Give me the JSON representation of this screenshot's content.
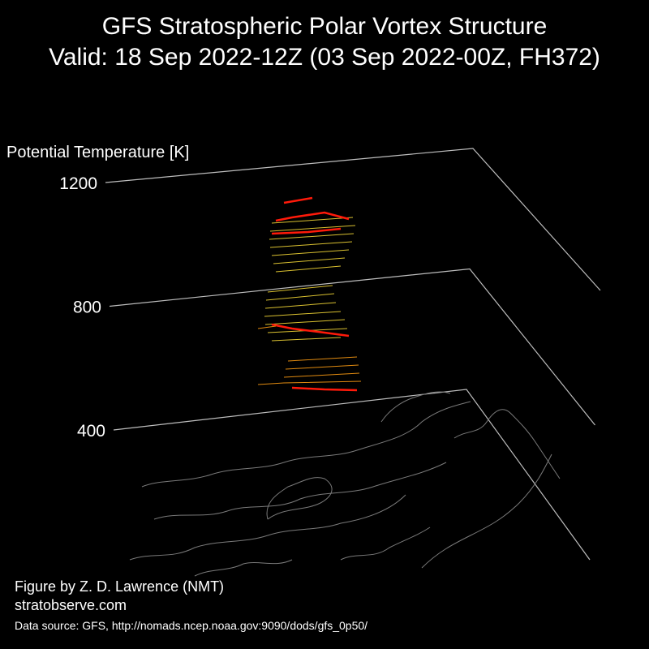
{
  "header": {
    "title": "GFS Stratospheric Polar Vortex Structure",
    "subtitle": "Valid: 18 Sep 2022-12Z  (03 Sep 2022-00Z, FH372)"
  },
  "axis": {
    "label": "Potential Temperature [K]",
    "ticks": [
      1200,
      800,
      400
    ]
  },
  "footer": {
    "credit": "Figure by Z. D. Lawrence (NMT)",
    "site": "stratobserve.com",
    "source": "Data source: GFS, http://nomads.ncep.noaa.gov:9090/dods/gfs_0p50/"
  }
}
